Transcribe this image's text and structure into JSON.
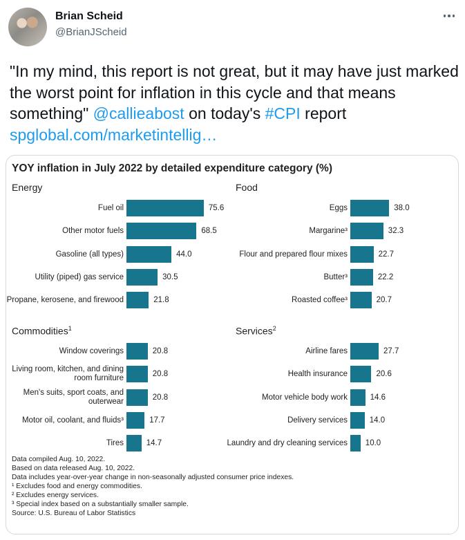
{
  "author": {
    "name": "Brian Scheid",
    "handle": "@BrianJScheid",
    "avatar_icon": "profile-photo"
  },
  "tweet": {
    "text_1": "\"In my mind, this report is not great, but it may have just marked the worst point for inflation in this cycle and that means something\" ",
    "mention": "@callieabost",
    "text_2": " on today's ",
    "hashtag": "#CPI",
    "text_3": " report ",
    "link": "spglobal.com/marketintellig…"
  },
  "chart_data": {
    "type": "bar",
    "title": "YOY inflation in July 2022 by detailed expenditure category (%)",
    "bar_color": "#17758d",
    "panels": [
      {
        "title": "Energy",
        "footnote_mark": "",
        "categories": [
          "Fuel oil",
          "Other motor fuels",
          "Gasoline (all types)",
          "Utility (piped) gas service",
          "Propane, kerosene, and firewood"
        ],
        "values": [
          75.6,
          68.5,
          44.0,
          30.5,
          21.8
        ],
        "labels": [
          "75.6",
          "68.5",
          "44.0",
          "30.5",
          "21.8"
        ]
      },
      {
        "title": "Food",
        "footnote_mark": "",
        "categories": [
          "Eggs",
          "Margarine³",
          "Flour and prepared flour mixes",
          "Butter³",
          "Roasted coffee³"
        ],
        "values": [
          38.0,
          32.3,
          22.7,
          22.2,
          20.7
        ],
        "labels": [
          "38.0",
          "32.3",
          "22.7",
          "22.2",
          "20.7"
        ]
      },
      {
        "title": "Commodities",
        "footnote_mark": "1",
        "categories": [
          "Window coverings",
          "Living room, kitchen, and dining room furniture",
          "Men's suits, sport coats, and outerwear",
          "Motor oil, coolant, and fluids³",
          "Tires"
        ],
        "values": [
          20.8,
          20.8,
          20.8,
          17.7,
          14.7
        ],
        "labels": [
          "20.8",
          "20.8",
          "20.8",
          "17.7",
          "14.7"
        ]
      },
      {
        "title": "Services",
        "footnote_mark": "2",
        "categories": [
          "Airline fares",
          "Health insurance",
          "Motor vehicle body work",
          "Delivery services",
          "Laundry and dry cleaning services"
        ],
        "values": [
          27.7,
          20.6,
          14.6,
          14.0,
          10.0
        ],
        "labels": [
          "27.7",
          "20.6",
          "14.6",
          "14.0",
          "10.0"
        ]
      }
    ],
    "notes": [
      "Data compiled Aug. 10, 2022.",
      "Based on data released Aug. 10, 2022.",
      "Data includes year-over-year change in non-seasonally adjusted consumer price indexes.",
      "¹ Excludes food and energy commodities.",
      "² Excludes energy services.",
      "³ Special index based on a substantially smaller sample.",
      "Source: U.S. Bureau of Labor Statistics"
    ]
  }
}
